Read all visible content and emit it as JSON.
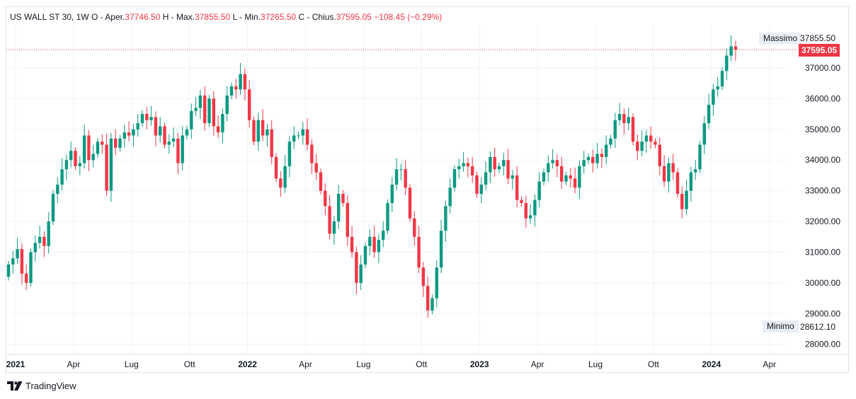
{
  "legend": {
    "symbol": "US WALL ST 30,",
    "interval": "1W",
    "open_label": "O - Aper.",
    "open_value": "37746.50",
    "high_label": "H - Max.",
    "high_value": "37855.50",
    "low_label": "L - Min.",
    "low_value": "37265.50",
    "close_label": "C - Chius.",
    "close_value": "37595.05",
    "change": "−108.45 (−0.29%)"
  },
  "price_tags": {
    "max_label": "Massimo",
    "max_value": "37855.50",
    "last_value": "37595.05",
    "min_label": "Minimo",
    "min_value": "28612.10"
  },
  "footer": {
    "brand": "TradingView"
  },
  "colors": {
    "up": "#089981",
    "down": "#f23645",
    "grid": "#f0f3fa",
    "tag": "#e9edf5"
  },
  "chart_data": {
    "type": "candlestick",
    "y_ticks": [
      "37000.00",
      "36000.00",
      "35000.00",
      "34000.00",
      "33000.00",
      "32000.00",
      "31000.00",
      "30000.00",
      "29000.00",
      "28000.00"
    ],
    "y_tick_values": [
      37000,
      36000,
      35000,
      34000,
      33000,
      32000,
      31000,
      30000,
      29000,
      28000
    ],
    "ylim": [
      27700,
      38400
    ],
    "x_ticks": [
      {
        "label": "2021",
        "week": 0,
        "bold": true
      },
      {
        "label": "Apr",
        "week": 13,
        "bold": false
      },
      {
        "label": "Lug",
        "week": 26,
        "bold": false
      },
      {
        "label": "Ott",
        "week": 39,
        "bold": false
      },
      {
        "label": "2022",
        "week": 52,
        "bold": true
      },
      {
        "label": "Apr",
        "week": 65,
        "bold": false
      },
      {
        "label": "Lug",
        "week": 78,
        "bold": false
      },
      {
        "label": "Ott",
        "week": 91,
        "bold": false
      },
      {
        "label": "2023",
        "week": 104,
        "bold": true
      },
      {
        "label": "Apr",
        "week": 117,
        "bold": false
      },
      {
        "label": "Lug",
        "week": 130,
        "bold": false
      },
      {
        "label": "Ott",
        "week": 143,
        "bold": false
      },
      {
        "label": "2024",
        "week": 156,
        "bold": true
      },
      {
        "label": "Apr",
        "week": 169,
        "bold": false
      }
    ],
    "closes": [
      30600,
      30800,
      31100,
      30300,
      30000,
      31000,
      31300,
      31500,
      31200,
      32000,
      32900,
      33200,
      33700,
      34000,
      34300,
      33800,
      33900,
      34800,
      34000,
      34200,
      34600,
      34500,
      33000,
      34700,
      34400,
      34700,
      34900,
      34800,
      35000,
      35200,
      35500,
      35300,
      35400,
      34800,
      35100,
      34500,
      34600,
      34700,
      33900,
      34800,
      35000,
      35600,
      35700,
      36100,
      35200,
      36000,
      35100,
      34900,
      35500,
      36100,
      36400,
      36300,
      36800,
      36300,
      35300,
      34600,
      35300,
      34800,
      35000,
      34100,
      33400,
      33100,
      33800,
      34600,
      34800,
      34800,
      35000,
      34500,
      33900,
      33600,
      33000,
      32500,
      31600,
      32000,
      32900,
      32600,
      31500,
      31000,
      30000,
      30600,
      31200,
      31500,
      31000,
      31400,
      31700,
      32600,
      33200,
      33700,
      33700,
      33100,
      32100,
      31500,
      30500,
      29900,
      29100,
      29500,
      30500,
      31700,
      32500,
      33100,
      33700,
      33800,
      33900,
      33800,
      33500,
      32900,
      33200,
      33600,
      34100,
      33700,
      33800,
      34000,
      33400,
      33500,
      32700,
      32600,
      32100,
      32200,
      32700,
      33300,
      33600,
      33900,
      34000,
      33800,
      33300,
      33500,
      33400,
      33100,
      33800,
      34000,
      34100,
      33900,
      34200,
      34100,
      34500,
      34700,
      35300,
      35500,
      35200,
      35400,
      34600,
      34300,
      34600,
      34800,
      34600,
      34500,
      33800,
      33300,
      33900,
      33600,
      32900,
      32400,
      33000,
      33600,
      33700,
      34500,
      35200,
      35800,
      36300,
      36400,
      36900,
      37400,
      37700,
      37595
    ],
    "ohlc_note": "Weekly candles; opens are the previous close with wicks around each body."
  }
}
